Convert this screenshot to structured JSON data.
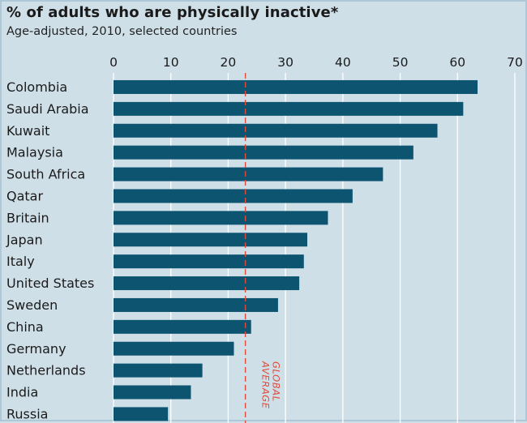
{
  "chart_data": {
    "type": "bar",
    "orientation": "horizontal",
    "title": "% of adults who are physically inactive*",
    "subtitle": "Age-adjusted, 2010, selected countries",
    "categories": [
      "Colombia",
      "Saudi Arabia",
      "Kuwait",
      "Malaysia",
      "South Africa",
      "Qatar",
      "Britain",
      "Japan",
      "Italy",
      "United States",
      "Sweden",
      "China",
      "Germany",
      "Netherlands",
      "India",
      "Russia"
    ],
    "values": [
      63.5,
      61,
      56.5,
      52.3,
      47,
      41.7,
      37.4,
      33.8,
      33.2,
      32.4,
      28.7,
      24,
      21,
      15.5,
      13.5,
      9.5
    ],
    "xlim": [
      0,
      70
    ],
    "xticks": [
      0,
      10,
      20,
      30,
      40,
      50,
      60,
      70
    ],
    "grid": true,
    "reference_line": {
      "value": 23,
      "label_lines": [
        "GLOBAL",
        "AVERAGE"
      ]
    },
    "bar_color": "#0d5470",
    "reference_color": "#e04a3a"
  }
}
